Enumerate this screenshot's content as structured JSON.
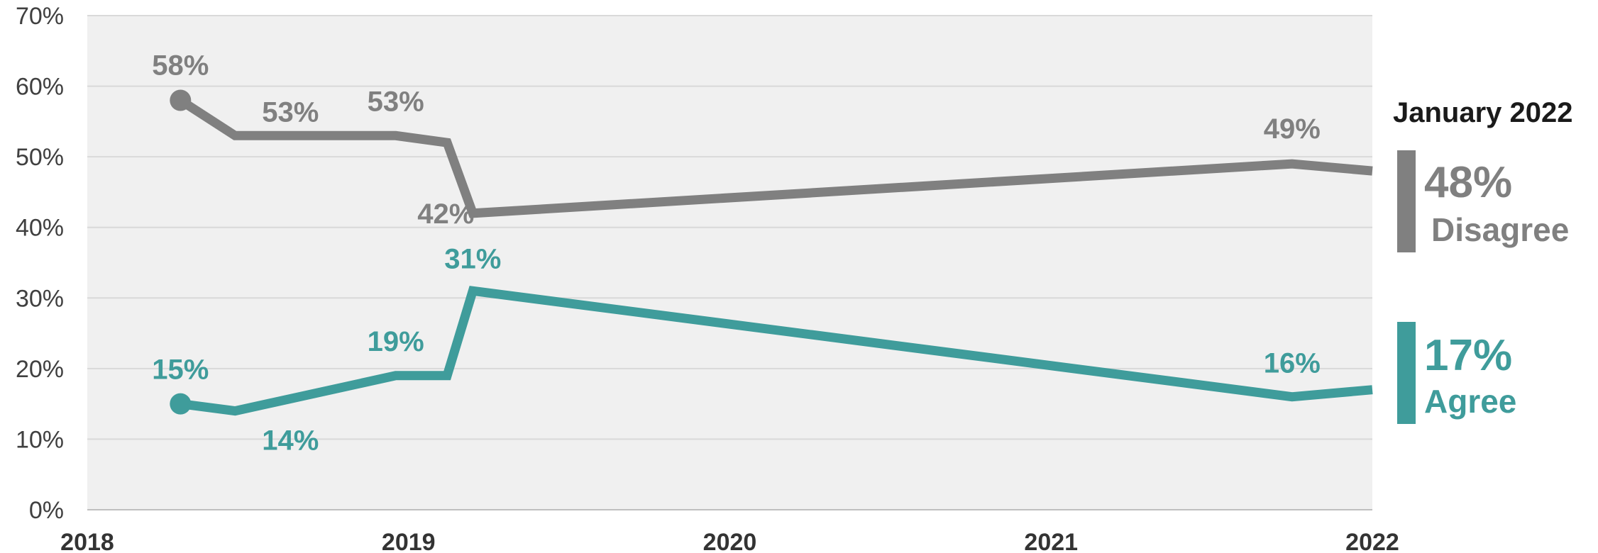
{
  "chart_data": {
    "type": "line",
    "title": "",
    "xlabel": "",
    "ylabel": "",
    "x_ticks": [
      "2018",
      "2019",
      "2020",
      "2021",
      "2022"
    ],
    "y_ticks": [
      "0%",
      "10%",
      "20%",
      "30%",
      "40%",
      "50%",
      "60%",
      "70%"
    ],
    "xlim": [
      2018,
      2022
    ],
    "ylim": [
      0,
      70
    ],
    "grid": "horizontal",
    "background": "#f0f0f0",
    "series": [
      {
        "name": "Disagree",
        "color": "#808080",
        "x": [
          2018.29,
          2018.46,
          2018.96,
          2019.12,
          2019.2,
          2021.75,
          2022.0
        ],
        "y": [
          58,
          53,
          53,
          52,
          42,
          49,
          48
        ],
        "labels": [
          "58%",
          "53%",
          "53%",
          "",
          "42%",
          "49%",
          ""
        ]
      },
      {
        "name": "Agree",
        "color": "#3f9c9b",
        "x": [
          2018.29,
          2018.46,
          2018.96,
          2019.12,
          2019.2,
          2021.75,
          2022.0
        ],
        "y": [
          15,
          14,
          19,
          19,
          31,
          16,
          17
        ],
        "labels": [
          "15%",
          "14%",
          "19%",
          "",
          "31%",
          "16%",
          ""
        ]
      }
    ],
    "legend": {
      "title": "January 2022",
      "placement": "right",
      "entries": [
        {
          "value": "48%",
          "label": "Disagree",
          "color": "#808080"
        },
        {
          "value": "17%",
          "label": "Agree",
          "color": "#3f9c9b"
        }
      ]
    }
  }
}
